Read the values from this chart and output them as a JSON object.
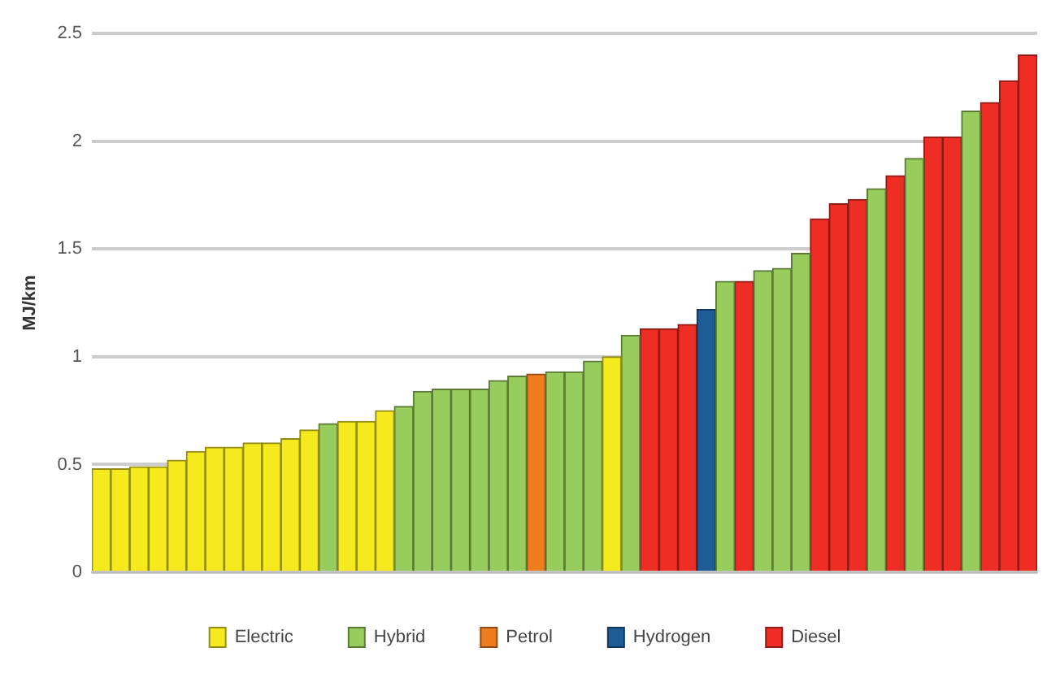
{
  "chart_data": {
    "type": "bar",
    "ylabel": "MJ/km",
    "categories": [
      null,
      null,
      null,
      null,
      null,
      null,
      null,
      null,
      null,
      null,
      null,
      null,
      null,
      null,
      null,
      null,
      null,
      null,
      null,
      null,
      null,
      null,
      null,
      null,
      null,
      null,
      null,
      null,
      null,
      null,
      null,
      null,
      null,
      null,
      null,
      null,
      null,
      null,
      null,
      null,
      null,
      null,
      null,
      null,
      null,
      null,
      null,
      null,
      null,
      null
    ],
    "series": [
      {
        "name": "Electric",
        "color": "#f5ea1e",
        "values": [
          0.48,
          0.48,
          0.49,
          0.49,
          0.52,
          0.56,
          0.58,
          0.58,
          0.6,
          0.6,
          0.62,
          0.66,
          null,
          0.7,
          0.7,
          0.75,
          null,
          null,
          null,
          null,
          null,
          null,
          null,
          null,
          null,
          null,
          null,
          1,
          null,
          null,
          null,
          null,
          null,
          null,
          null,
          null,
          null,
          null,
          null,
          null,
          null,
          null,
          null,
          null,
          null,
          null,
          null,
          null,
          null,
          null
        ]
      },
      {
        "name": "Hybrid",
        "color": "#98cc5c",
        "values": [
          null,
          null,
          null,
          null,
          null,
          null,
          null,
          null,
          null,
          null,
          null,
          null,
          0.69,
          null,
          null,
          null,
          0.77,
          0.84,
          0.85,
          0.85,
          0.85,
          0.89,
          0.91,
          null,
          0.93,
          0.93,
          0.98,
          null,
          1.1,
          null,
          null,
          null,
          null,
          1.35,
          null,
          1.4,
          1.41,
          1.48,
          null,
          null,
          null,
          1.78,
          null,
          1.92,
          null,
          null,
          2.14,
          null,
          null,
          null
        ]
      },
      {
        "name": "Petrol",
        "color": "#ee7d1e",
        "values": [
          null,
          null,
          null,
          null,
          null,
          null,
          null,
          null,
          null,
          null,
          null,
          null,
          null,
          null,
          null,
          null,
          null,
          null,
          null,
          null,
          null,
          null,
          null,
          0.92,
          null,
          null,
          null,
          null,
          null,
          null,
          null,
          null,
          null,
          null,
          null,
          null,
          null,
          null,
          null,
          null,
          null,
          null,
          null,
          null,
          null,
          null,
          null,
          null,
          null,
          null
        ]
      },
      {
        "name": "Hydrogen",
        "color": "#1f5b96",
        "values": [
          null,
          null,
          null,
          null,
          null,
          null,
          null,
          null,
          null,
          null,
          null,
          null,
          null,
          null,
          null,
          null,
          null,
          null,
          null,
          null,
          null,
          null,
          null,
          null,
          null,
          null,
          null,
          null,
          null,
          null,
          null,
          null,
          1.22,
          null,
          null,
          null,
          null,
          null,
          null,
          null,
          null,
          null,
          null,
          null,
          null,
          null,
          null,
          null,
          null,
          null
        ]
      },
      {
        "name": "Diesel",
        "color": "#ee2d24",
        "values": [
          null,
          null,
          null,
          null,
          null,
          null,
          null,
          null,
          null,
          null,
          null,
          null,
          null,
          null,
          null,
          null,
          null,
          null,
          null,
          null,
          null,
          null,
          null,
          null,
          null,
          null,
          null,
          null,
          null,
          1.13,
          1.13,
          1.15,
          null,
          null,
          1.35,
          null,
          null,
          null,
          1.64,
          1.71,
          1.73,
          null,
          1.84,
          null,
          2.02,
          2.02,
          null,
          2.18,
          2.28,
          2.4
        ]
      }
    ],
    "ylim": [
      0,
      2.5
    ],
    "yticks": [
      0,
      0.5,
      1,
      1.5,
      2,
      2.5
    ],
    "grid": "y",
    "legend": "bottom"
  }
}
